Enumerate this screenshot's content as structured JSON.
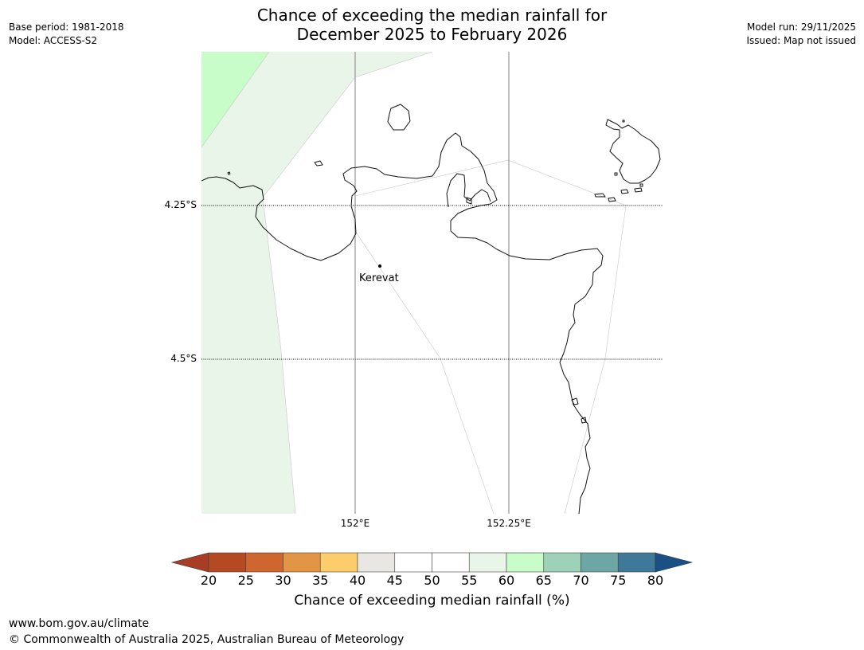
{
  "title": {
    "line1": "Chance of exceeding the median rainfall for",
    "line2": "December 2025 to February 2026"
  },
  "meta_left": {
    "base_period": "Base period: 1981-2018",
    "model": "Model: ACCESS-S2"
  },
  "meta_right": {
    "model_run": "Model run: 29/11/2025",
    "issued": "Issued: Map not issued"
  },
  "map": {
    "lat_labels": [
      "4.25°S",
      "4.5°S"
    ],
    "lon_labels": [
      "152°E",
      "152.25°E"
    ],
    "place": "Kerevat"
  },
  "colorbar": {
    "ticks": [
      "20",
      "25",
      "30",
      "35",
      "40",
      "45",
      "50",
      "55",
      "60",
      "65",
      "70",
      "75",
      "80"
    ],
    "colors": [
      "#a83c25",
      "#b34a24",
      "#cf6630",
      "#e29545",
      "#fdcd6b",
      "#e8e7e3",
      "#ffffff",
      "#ffffff",
      "#eaf5e9",
      "#c8fcc8",
      "#9dd1b8",
      "#6ea5a5",
      "#3f7899",
      "#1b5087"
    ],
    "caption": "Chance of exceeding median rainfall (%)"
  },
  "footer": {
    "url": "www.bom.gov.au/climate",
    "copyright": "© Commonwealth of Australia 2025, Australian Bureau of Meteorology"
  }
}
